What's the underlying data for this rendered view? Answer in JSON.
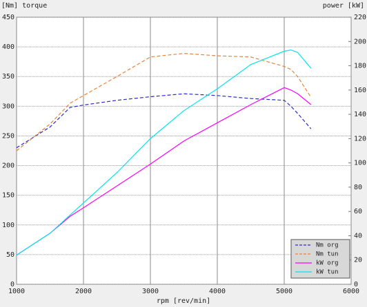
{
  "chart_data": {
    "type": "line",
    "ylabel": "[Nm] torque",
    "y2label": "power [kW]",
    "xlabel": "rpm [rev/min]",
    "x": [
      1000,
      1500,
      1800,
      2000,
      2500,
      3000,
      3500,
      4000,
      4500,
      5000,
      5100,
      5200,
      5400
    ],
    "series": [
      {
        "name": "Nm org",
        "color": "#2a2acc",
        "dash": true,
        "values": [
          230,
          265,
          298,
          302,
          310,
          316,
          321,
          318,
          313,
          310,
          300,
          288,
          262
        ]
      },
      {
        "name": "Nm tun",
        "color": "#e8823a",
        "dash": true,
        "values": [
          225,
          270,
          305,
          318,
          350,
          383,
          389,
          385,
          383,
          367,
          362,
          350,
          315
        ]
      },
      {
        "name": "kW org",
        "color": "#ff00ff",
        "axis": "y2",
        "values": [
          24,
          42,
          56,
          63,
          81,
          99,
          118,
          133,
          148,
          162,
          160,
          157,
          148
        ]
      },
      {
        "name": "kW tun",
        "color": "#00e5ee",
        "axis": "y2",
        "values": [
          24,
          42,
          57,
          67,
          92,
          120,
          143,
          161,
          181,
          192,
          193,
          191,
          178
        ]
      }
    ],
    "xlim": [
      1000,
      6000
    ],
    "xticks": [
      1000,
      2000,
      3000,
      4000,
      5000,
      6000
    ],
    "ylim": [
      0,
      450
    ],
    "yticks": [
      0,
      50,
      100,
      150,
      200,
      250,
      300,
      350,
      400,
      450
    ],
    "y2lim": [
      0,
      220
    ],
    "y2ticks": [
      0,
      20,
      40,
      60,
      80,
      100,
      120,
      140,
      160,
      180,
      200,
      220
    ],
    "grid": true,
    "legend": "lower right"
  }
}
